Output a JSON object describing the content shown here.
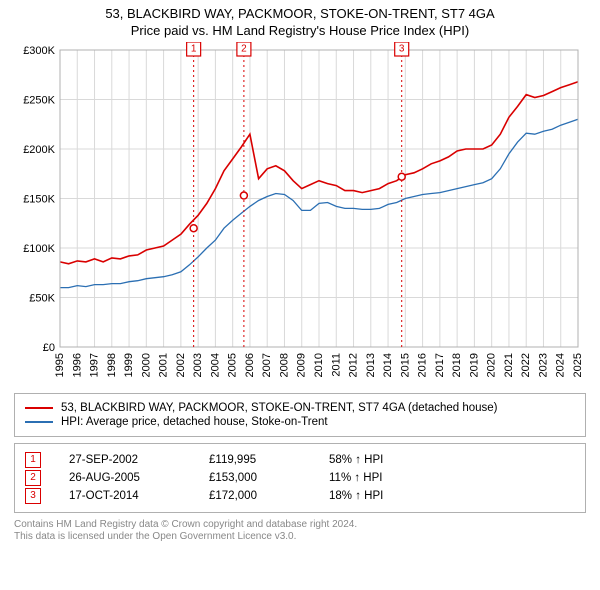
{
  "title_line1": "53, BLACKBIRD WAY, PACKMOOR, STOKE-ON-TRENT, ST7 4GA",
  "title_line2": "Price paid vs. HM Land Registry's House Price Index (HPI)",
  "chart": {
    "type": "line",
    "background_color": "#ffffff",
    "grid_color": "#d9d9d9",
    "border_color": "#b0b0b0",
    "ylim": [
      0,
      300000
    ],
    "ytick_step": 50000,
    "ytick_labels": [
      "£0",
      "£50K",
      "£100K",
      "£150K",
      "£200K",
      "£250K",
      "£300K"
    ],
    "xlim": [
      1995,
      2025
    ],
    "xtick_step": 1,
    "xtick_labels": [
      "1995",
      "1996",
      "1997",
      "1998",
      "1999",
      "2000",
      "2001",
      "2002",
      "2003",
      "2004",
      "2005",
      "2006",
      "2007",
      "2008",
      "2009",
      "2010",
      "2011",
      "2012",
      "2013",
      "2014",
      "2015",
      "2016",
      "2017",
      "2018",
      "2019",
      "2020",
      "2021",
      "2022",
      "2023",
      "2024",
      "2025"
    ],
    "x_label_rotate_deg": -90,
    "series1": {
      "color": "#d90000",
      "width": 1.6,
      "label": "53, BLACKBIRD WAY, PACKMOOR, STOKE-ON-TRENT, ST7 4GA (detached house)",
      "x": [
        1995,
        1995.5,
        1996,
        1996.5,
        1997,
        1997.5,
        1998,
        1998.5,
        1999,
        1999.5,
        2000,
        2000.5,
        2001,
        2001.5,
        2002,
        2002.5,
        2003,
        2003.5,
        2004,
        2004.5,
        2005,
        2005.5,
        2006,
        2006.5,
        2007,
        2007.5,
        2008,
        2008.5,
        2009,
        2009.5,
        2010,
        2010.5,
        2011,
        2011.5,
        2012,
        2012.5,
        2013,
        2013.5,
        2014,
        2014.5,
        2015,
        2015.5,
        2016,
        2016.5,
        2017,
        2017.5,
        2018,
        2018.5,
        2019,
        2019.5,
        2020,
        2020.5,
        2021,
        2021.5,
        2022,
        2022.5,
        2023,
        2023.5,
        2024,
        2024.5,
        2025
      ],
      "y": [
        86000,
        84000,
        87000,
        86000,
        89000,
        86000,
        90000,
        89000,
        92000,
        93000,
        98000,
        100000,
        102000,
        108000,
        114000,
        124000,
        133000,
        145000,
        160000,
        178000,
        190000,
        202000,
        215000,
        170000,
        180000,
        183000,
        178000,
        168000,
        160000,
        164000,
        168000,
        165000,
        163000,
        158000,
        158000,
        156000,
        158000,
        160000,
        165000,
        168000,
        174000,
        176000,
        180000,
        185000,
        188000,
        192000,
        198000,
        200000,
        200000,
        200000,
        204000,
        215000,
        232000,
        243000,
        255000,
        252000,
        254000,
        258000,
        262000,
        265000,
        268000
      ]
    },
    "series2": {
      "color": "#2b6fb3",
      "width": 1.3,
      "label": "HPI: Average price, detached house, Stoke-on-Trent",
      "x": [
        1995,
        1995.5,
        1996,
        1996.5,
        1997,
        1997.5,
        1998,
        1998.5,
        1999,
        1999.5,
        2000,
        2000.5,
        2001,
        2001.5,
        2002,
        2002.5,
        2003,
        2003.5,
        2004,
        2004.5,
        2005,
        2005.5,
        2006,
        2006.5,
        2007,
        2007.5,
        2008,
        2008.5,
        2009,
        2009.5,
        2010,
        2010.5,
        2011,
        2011.5,
        2012,
        2012.5,
        2013,
        2013.5,
        2014,
        2014.5,
        2015,
        2015.5,
        2016,
        2016.5,
        2017,
        2017.5,
        2018,
        2018.5,
        2019,
        2019.5,
        2020,
        2020.5,
        2021,
        2021.5,
        2022,
        2022.5,
        2023,
        2023.5,
        2024,
        2024.5,
        2025
      ],
      "y": [
        60000,
        60000,
        62000,
        61000,
        63000,
        63000,
        64000,
        64000,
        66000,
        67000,
        69000,
        70000,
        71000,
        73000,
        76000,
        83000,
        91000,
        100000,
        108000,
        120000,
        128000,
        135000,
        142000,
        148000,
        152000,
        155000,
        154000,
        148000,
        138000,
        138000,
        145000,
        146000,
        142000,
        140000,
        140000,
        139000,
        139000,
        140000,
        144000,
        146000,
        150000,
        152000,
        154000,
        155000,
        156000,
        158000,
        160000,
        162000,
        164000,
        166000,
        170000,
        180000,
        195000,
        207000,
        216000,
        215000,
        218000,
        220000,
        224000,
        227000,
        230000
      ]
    },
    "markers": [
      {
        "num": "1",
        "year": 2002.74,
        "price": 119995
      },
      {
        "num": "2",
        "year": 2005.65,
        "price": 153000
      },
      {
        "num": "3",
        "year": 2014.79,
        "price": 172000
      }
    ],
    "marker_color": "#d90000",
    "marker_box_size": 14
  },
  "legend": {
    "rows": [
      {
        "color": "#d90000",
        "label": "53, BLACKBIRD WAY, PACKMOOR, STOKE-ON-TRENT, ST7 4GA (detached house)"
      },
      {
        "color": "#2b6fb3",
        "label": "HPI: Average price, detached house, Stoke-on-Trent"
      }
    ]
  },
  "sales": {
    "marker_color": "#d90000",
    "rows": [
      {
        "num": "1",
        "date": "27-SEP-2002",
        "price": "£119,995",
        "vs_hpi": "58% ↑ HPI"
      },
      {
        "num": "2",
        "date": "26-AUG-2005",
        "price": "£153,000",
        "vs_hpi": "11% ↑ HPI"
      },
      {
        "num": "3",
        "date": "17-OCT-2014",
        "price": "£172,000",
        "vs_hpi": "18% ↑ HPI"
      }
    ]
  },
  "attribution_line1": "Contains HM Land Registry data © Crown copyright and database right 2024.",
  "attribution_line2": "This data is licensed under the Open Government Licence v3.0."
}
